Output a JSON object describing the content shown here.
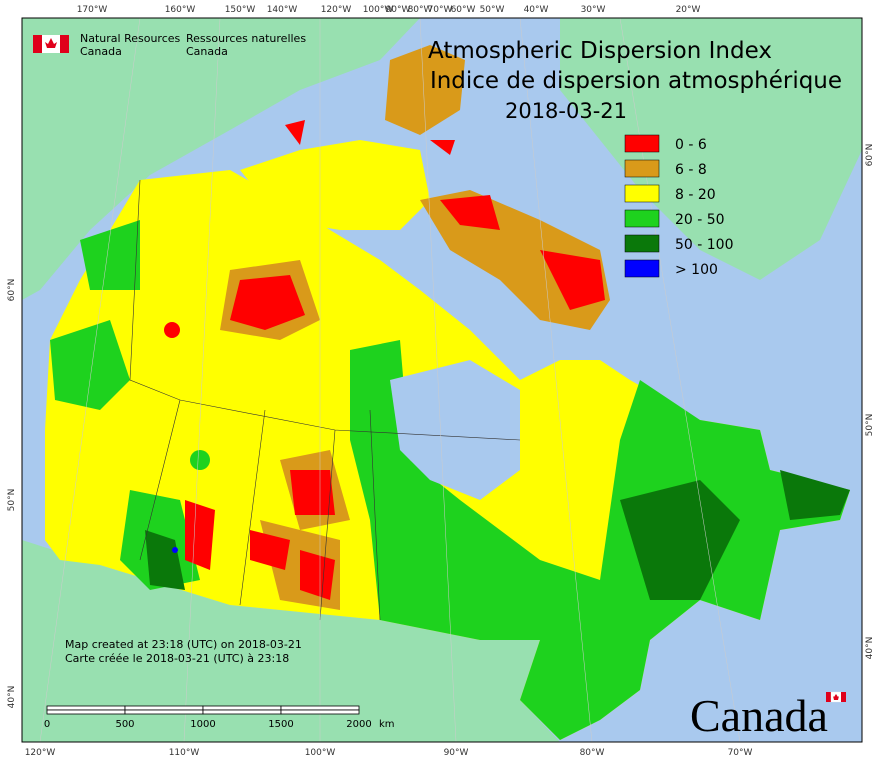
{
  "map": {
    "title": "Atmospheric Dispersion Index",
    "title_fr": "Indice de dispersion atmosphérique",
    "date": "2018-03-21",
    "agency_en": [
      "Natural Resources",
      "Canada"
    ],
    "agency_fr": [
      "Ressources naturelles",
      "Canada"
    ],
    "legend": [
      {
        "label": "0 - 6",
        "color": "#ff0000"
      },
      {
        "label": "6 - 8",
        "color": "#d99a1a"
      },
      {
        "label": "8 - 20",
        "color": "#ffff00"
      },
      {
        "label": "20 - 50",
        "color": "#1ed21e"
      },
      {
        "label": "50 - 100",
        "color": "#0a780a"
      },
      {
        "label": "> 100",
        "color": "#0000ff"
      }
    ],
    "credits": [
      "Map created at 23:18 (UTC) on 2018-03-21",
      "Carte créée le 2018-03-21 (UTC) à 23:18"
    ],
    "scale_ticks": [
      0,
      500,
      1000,
      1500,
      2000
    ],
    "scale_unit": "km",
    "top_labels": [
      "170°W",
      "160°W",
      "150°W",
      "140°W",
      "120°W",
      "100°W",
      "90°W",
      "80°W",
      "70°W",
      "60°W",
      "50°W",
      "40°W",
      "30°W",
      "20°W"
    ],
    "bottom_labels": [
      "120°W",
      "110°W",
      "100°W",
      "90°W",
      "80°W",
      "70°W"
    ],
    "left_labels": [
      "60°N",
      "50°N",
      "40°N"
    ],
    "right_labels": [
      "60°N",
      "50°N",
      "40°N"
    ],
    "wordmark": "Canada"
  }
}
